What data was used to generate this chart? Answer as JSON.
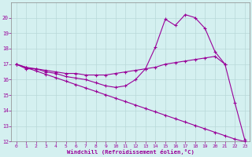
{
  "x": [
    0,
    1,
    2,
    3,
    4,
    5,
    6,
    7,
    8,
    9,
    10,
    11,
    12,
    13,
    14,
    15,
    16,
    17,
    18,
    19,
    20,
    21,
    22,
    23
  ],
  "curve_spiky": [
    17.0,
    16.7,
    16.7,
    16.5,
    16.4,
    16.2,
    16.1,
    16.0,
    15.8,
    15.6,
    15.5,
    15.6,
    16.0,
    16.7,
    18.1,
    19.9,
    19.5,
    20.2,
    20.0,
    19.3,
    17.8,
    17.0,
    14.5,
    12.1
  ],
  "curve_interp": [
    17.0,
    16.8,
    16.7,
    16.6,
    16.5,
    16.4,
    16.4,
    16.3,
    16.3,
    16.3,
    16.4,
    16.5,
    16.6,
    16.7,
    16.8,
    17.0,
    17.1,
    17.2,
    17.3,
    17.4,
    17.5,
    17.0,
    null,
    null
  ],
  "curve_linear_x": [
    0,
    1,
    2,
    3,
    4,
    5,
    6,
    7,
    8,
    9,
    10,
    11,
    12,
    13,
    14,
    15,
    16,
    17,
    18,
    19,
    20,
    21,
    22,
    23
  ],
  "curve_linear_y": [
    17.0,
    16.78,
    16.56,
    16.34,
    16.12,
    15.9,
    15.68,
    15.46,
    15.24,
    15.02,
    14.8,
    14.58,
    14.36,
    14.14,
    13.92,
    13.7,
    13.48,
    13.26,
    13.04,
    12.82,
    12.6,
    12.38,
    12.16,
    12.0
  ],
  "color": "#990099",
  "bg_color": "#d4f0f0",
  "grid_color": "#b8d8d8",
  "xlabel": "Windchill (Refroidissement éolien,°C)",
  "ylim": [
    12,
    21
  ],
  "xlim": [
    -0.5,
    23.5
  ],
  "yticks": [
    12,
    13,
    14,
    15,
    16,
    17,
    18,
    19,
    20
  ],
  "xticks": [
    0,
    1,
    2,
    3,
    4,
    5,
    6,
    7,
    8,
    9,
    10,
    11,
    12,
    13,
    14,
    15,
    16,
    17,
    18,
    19,
    20,
    21,
    22,
    23
  ]
}
